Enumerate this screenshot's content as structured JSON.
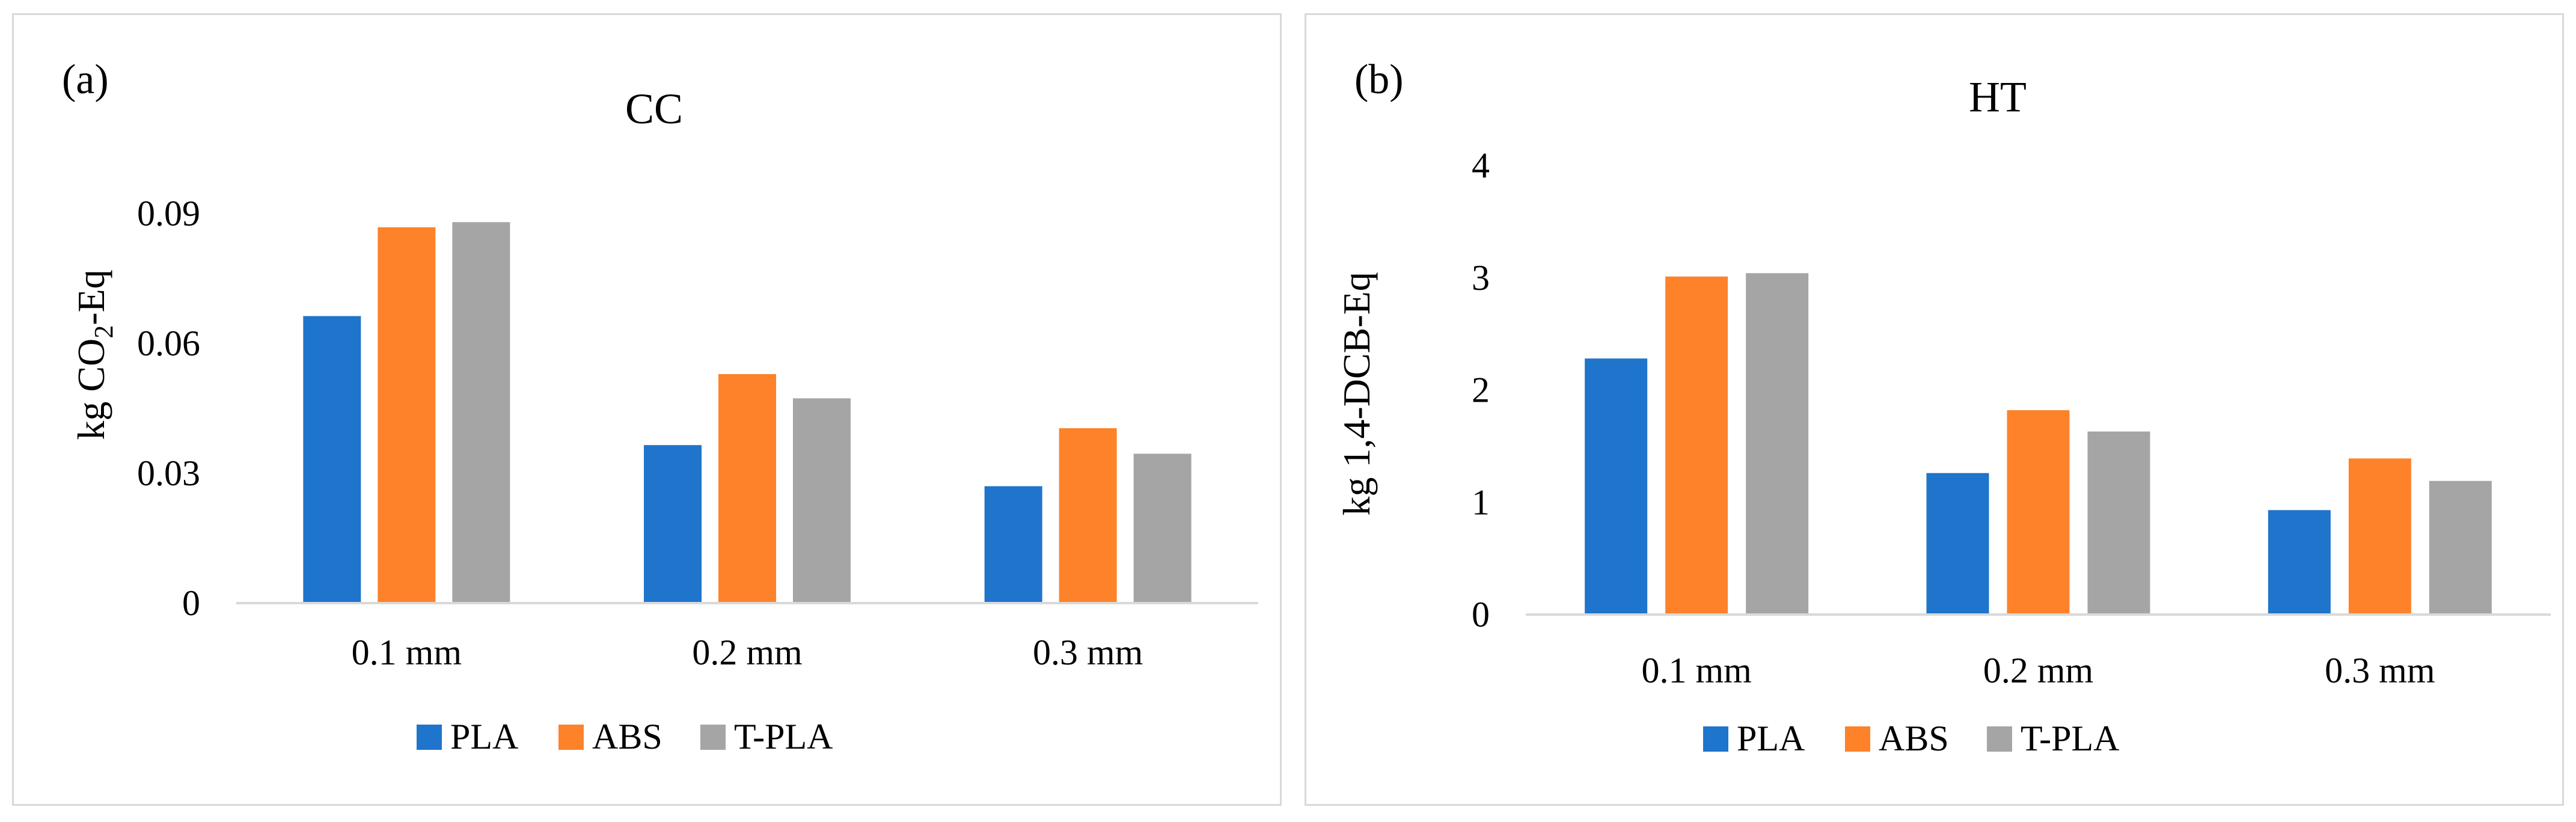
{
  "chart_data": [
    {
      "type": "bar",
      "panel_label": "(a)",
      "title": "CC",
      "xlabel": "",
      "ylabel": "kg CO2-Eq",
      "ylabel_parts": {
        "prefix": "kg CO",
        "subscript": "2",
        "suffix": "-Eq"
      },
      "categories": [
        "0.1 mm",
        "0.2 mm",
        "0.3 mm"
      ],
      "yticks": [
        "0",
        "0.03",
        "0.06",
        "0.09"
      ],
      "ylim": [
        0,
        0.09
      ],
      "grid": false,
      "legend_position": "bottom",
      "series": [
        {
          "name": "PLA",
          "color": "#1f74cc",
          "values": [
            0.0663,
            0.0365,
            0.027
          ]
        },
        {
          "name": "ABS",
          "color": "#fd822a",
          "values": [
            0.0868,
            0.0529,
            0.0404
          ]
        },
        {
          "name": "T-PLA",
          "color": "#a5a5a5",
          "values": [
            0.088,
            0.0473,
            0.0345
          ]
        }
      ]
    },
    {
      "type": "bar",
      "panel_label": "(b)",
      "title": "HT",
      "xlabel": "",
      "ylabel": "kg 1,4-DCB-Eq",
      "categories": [
        "0.1 mm",
        "0.2 mm",
        "0.3 mm"
      ],
      "yticks": [
        "0",
        "1",
        "2",
        "3",
        "4"
      ],
      "ylim": [
        0,
        4
      ],
      "grid": false,
      "legend_position": "bottom",
      "series": [
        {
          "name": "PLA",
          "color": "#1f74cc",
          "values": [
            2.28,
            1.26,
            0.93
          ]
        },
        {
          "name": "ABS",
          "color": "#fd822a",
          "values": [
            3.01,
            1.82,
            1.39
          ]
        },
        {
          "name": "T-PLA",
          "color": "#a5a5a5",
          "values": [
            3.04,
            1.63,
            1.19
          ]
        }
      ]
    }
  ]
}
